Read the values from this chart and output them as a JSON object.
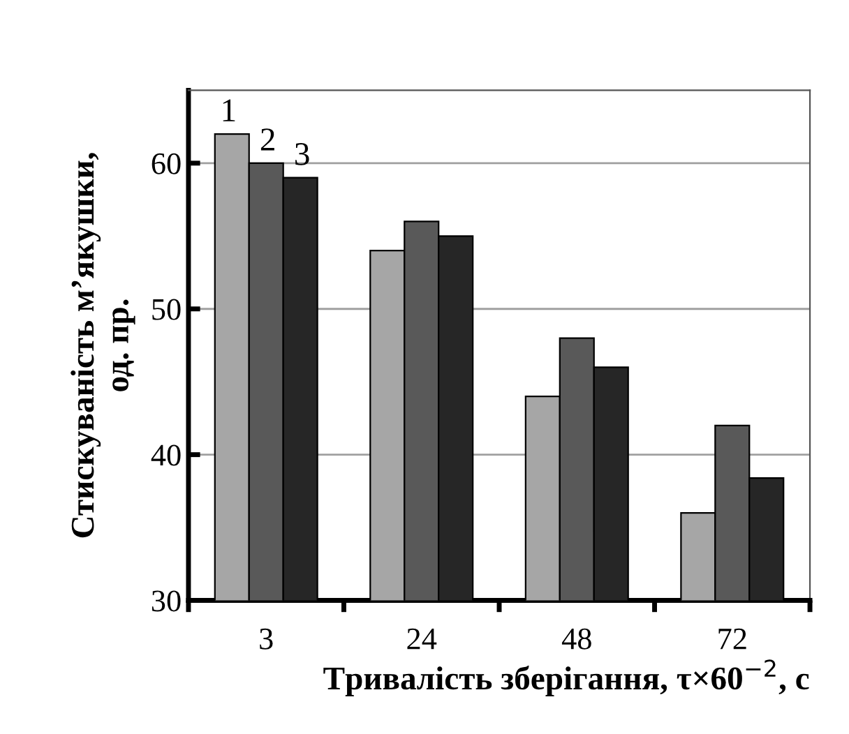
{
  "chart_data": {
    "type": "bar",
    "xlabel": "Тривалість зберігання, τ×60$^{−2}$, с",
    "ylabel": "Стискуваність м’якушки,\nод. пр.",
    "categories": [
      "3",
      "24",
      "48",
      "72"
    ],
    "series": [
      {
        "name": "1",
        "color": "#a6a6a6",
        "values": [
          62,
          54,
          44,
          36
        ]
      },
      {
        "name": "2",
        "color": "#595959",
        "values": [
          60,
          56,
          48,
          42
        ]
      },
      {
        "name": "3",
        "color": "#262626",
        "values": [
          59,
          55,
          46,
          38.4
        ]
      }
    ],
    "ylim": [
      30,
      65
    ],
    "yticks": [
      30,
      40,
      50,
      60
    ],
    "grid": "y",
    "legend": false
  }
}
